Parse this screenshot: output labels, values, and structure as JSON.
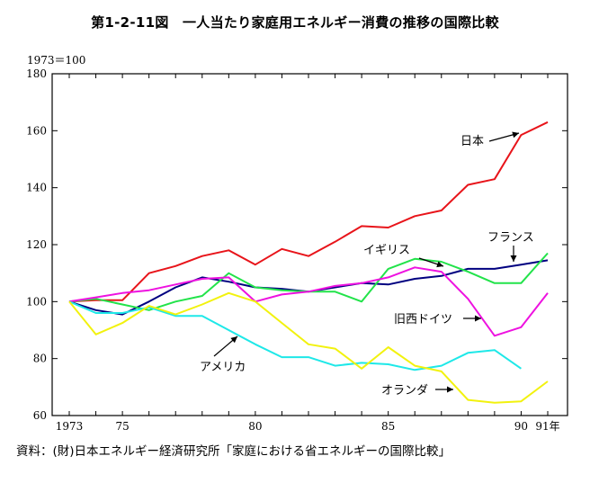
{
  "title": "第1-2-11図　一人当たり家庭用エネルギー消費の推移の国際比較",
  "y_unit_label": "1973＝100",
  "source": "資料：(財)日本エネルギー経済研究所「家庭における省エネルギーの国際比較」",
  "chart_data": {
    "type": "line",
    "title": "第1-2-11図　一人当たり家庭用エネルギー消費の推移の国際比較",
    "ylabel": "1973＝100",
    "xlabel": "",
    "xlim": [
      1973,
      1991
    ],
    "ylim": [
      60,
      180
    ],
    "grid": false,
    "legend": "inline annotations with arrows",
    "x_tick_labels": [
      {
        "x": 1973,
        "label": "1973"
      },
      {
        "x": 1975,
        "label": "75"
      },
      {
        "x": 1980,
        "label": "80"
      },
      {
        "x": 1985,
        "label": "85"
      },
      {
        "x": 1990,
        "label": "90"
      },
      {
        "x": 1991,
        "label": "91年"
      }
    ],
    "y_ticks": [
      60,
      80,
      100,
      120,
      140,
      160,
      180
    ],
    "x": [
      1973,
      1974,
      1975,
      1976,
      1977,
      1978,
      1979,
      1980,
      1981,
      1982,
      1983,
      1984,
      1985,
      1986,
      1987,
      1988,
      1989,
      1990,
      1991
    ],
    "series": [
      {
        "name": "日本",
        "color": "#e8141a",
        "values": [
          100,
          100.5,
          100.5,
          110,
          112.5,
          116,
          118,
          113,
          118.5,
          116,
          121,
          126.5,
          126,
          130,
          132,
          141,
          143,
          158.5,
          163
        ]
      },
      {
        "name": "フランス",
        "color": "#000080",
        "values": [
          100,
          97,
          95.5,
          100,
          105,
          108.5,
          107,
          105,
          104.5,
          103.5,
          105,
          106.5,
          106,
          108,
          109,
          111.5,
          111.5,
          113,
          114.5
        ]
      },
      {
        "name": "イギリス",
        "color": "#22e34a",
        "values": [
          100,
          101,
          99,
          97,
          100,
          102,
          110,
          105,
          104,
          103.5,
          103.5,
          100,
          111.5,
          115,
          114,
          110.5,
          106.5,
          106.5,
          117
        ]
      },
      {
        "name": "旧西ドイツ",
        "color": "#ee12e0",
        "values": [
          100,
          101.5,
          103,
          104,
          106,
          108,
          108.5,
          100,
          102.5,
          103.5,
          105.5,
          106.5,
          108.5,
          112,
          110.5,
          101,
          88,
          91,
          103
        ]
      },
      {
        "name": "アメリカ",
        "color": "#1ee8e8",
        "values": [
          100,
          96,
          96,
          98,
          95,
          95,
          90,
          85,
          80.5,
          80.5,
          77.5,
          78.5,
          78,
          76,
          77.5,
          82,
          83,
          76.5,
          null
        ]
      },
      {
        "name": "オランダ",
        "color": "#f2f20e",
        "values": [
          100,
          88.5,
          92.5,
          98.5,
          95.5,
          99,
          103,
          100,
          92.5,
          85,
          83.5,
          76.5,
          84,
          77.5,
          75.5,
          65.5,
          64.5,
          65,
          72
        ]
      }
    ],
    "annotations": [
      {
        "series": "日本",
        "text": "日本"
      },
      {
        "series": "フランス",
        "text": "フランス"
      },
      {
        "series": "イギリス",
        "text": "イギリス"
      },
      {
        "series": "旧西ドイツ",
        "text": "旧西ドイツ"
      },
      {
        "series": "アメリカ",
        "text": "アメリカ"
      },
      {
        "series": "オランダ",
        "text": "オランダ"
      }
    ]
  }
}
